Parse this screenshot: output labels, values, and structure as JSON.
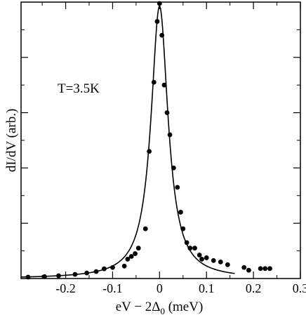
{
  "chart_data": {
    "type": "scatter",
    "xlabel": "eV − 2Δ",
    "xlabel_subscript": "0",
    "xlabel_unit": " (meV)",
    "ylabel": "dI/dV (arb.)",
    "annotation": "T=3.5K",
    "xlim": [
      -0.295,
      0.3
    ],
    "ylim": [
      0,
      1.0
    ],
    "x_ticks": [
      -0.2,
      -0.1,
      0,
      0.1,
      0.2,
      0.3
    ],
    "x_tick_labels": [
      "-0.2",
      "-0.1",
      "0",
      "0.1",
      "0.2",
      "0.3"
    ],
    "y_ticks": [
      0.2,
      0.4,
      0.6,
      0.8
    ],
    "grid": false,
    "series": [
      {
        "kind": "points",
        "x": [
          -0.28,
          -0.245,
          -0.215,
          -0.18,
          -0.155,
          -0.135,
          -0.118,
          -0.1,
          -0.075,
          -0.068,
          -0.06,
          -0.052,
          -0.045,
          -0.03,
          -0.022,
          -0.012,
          -0.005,
          0.0,
          0.005,
          0.01,
          0.016,
          0.022,
          0.03,
          0.038,
          0.045,
          0.05,
          0.058,
          0.065,
          0.075,
          0.085,
          0.09,
          0.1,
          0.115,
          0.13,
          0.145,
          0.18,
          0.19,
          0.215,
          0.225,
          0.235
        ],
        "y": [
          0.005,
          0.007,
          0.01,
          0.015,
          0.02,
          0.025,
          0.035,
          0.04,
          0.045,
          0.07,
          0.08,
          0.09,
          0.11,
          0.18,
          0.46,
          0.71,
          0.93,
          0.995,
          0.88,
          0.7,
          0.6,
          0.52,
          0.4,
          0.33,
          0.24,
          0.18,
          0.13,
          0.11,
          0.11,
          0.085,
          0.07,
          0.075,
          0.065,
          0.06,
          0.05,
          0.04,
          0.03,
          0.036,
          0.036,
          0.036
        ]
      },
      {
        "kind": "line",
        "model": "lorentzian",
        "params": {
          "center": 0.0,
          "gamma": 0.022,
          "amplitude": 0.985,
          "offset": 0.0
        },
        "x_range": [
          -0.295,
          0.16
        ]
      }
    ]
  }
}
